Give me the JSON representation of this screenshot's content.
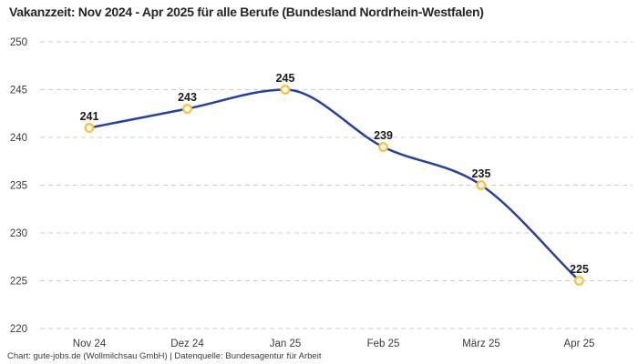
{
  "title": "Vakanzzeit: Nov 2024 - Apr 2025 für alle Berufe (Bundesland Nordrhein-Westfalen)",
  "footer": "Chart: gute-jobs.de (Wollmilchsau GmbH) | Datenquelle: Bundesagentur für Arbeit",
  "chart_data": {
    "type": "line",
    "title": "Vakanzzeit: Nov 2024 - Apr 2025 für alle Berufe (Bundesland Nordrhein-Westfalen)",
    "categories": [
      "Nov 24",
      "Dez 24",
      "Jan 25",
      "Feb 25",
      "März 25",
      "Apr 25"
    ],
    "values": [
      241,
      243,
      245,
      239,
      235,
      225
    ],
    "data_labels": [
      "241",
      "243",
      "245",
      "239",
      "235",
      "225"
    ],
    "xlabel": "",
    "ylabel": "",
    "ylim": [
      220,
      250
    ],
    "yticks": [
      250,
      245,
      240,
      235,
      230,
      225,
      220
    ],
    "grid": "horizontal-dashed",
    "legend": "none",
    "colors": {
      "line": "#2540a0",
      "marker_ring": "#fcc23d",
      "marker_fill": "#ffffff",
      "gridline": "#cccccc",
      "tick_label": "#3a3a3a",
      "data_label": "#1b1b1b"
    }
  }
}
